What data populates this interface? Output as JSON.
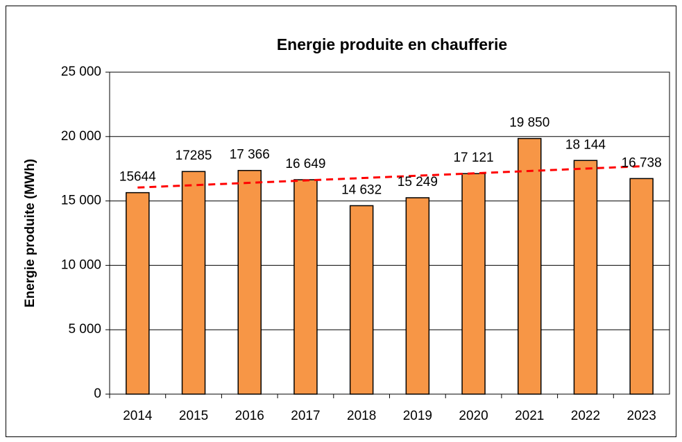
{
  "chart_data": {
    "type": "bar",
    "title": "Energie produite en chaufferie",
    "y_label": "Energie produite (MWh)",
    "categories": [
      "2014",
      "2015",
      "2016",
      "2017",
      "2018",
      "2019",
      "2020",
      "2021",
      "2022",
      "2023"
    ],
    "values": [
      15644,
      17285,
      17366,
      16649,
      14632,
      15249,
      17121,
      19850,
      18144,
      16738
    ],
    "value_labels": [
      "15644",
      "17285",
      "17 366",
      "16 649",
      "14 632",
      "15 249",
      "17 121",
      "19 850",
      "18 144",
      "16 738"
    ],
    "color": "#f79646",
    "trendline": {
      "color": "#ff0000",
      "dashed": true,
      "values": [
        16041,
        17694
      ]
    },
    "ylim": [
      0,
      25000
    ],
    "yticks": [
      0,
      {
        "value": 5000,
        "label": "5 000"
      },
      {
        "value": 10000,
        "label": "10 000"
      },
      {
        "value": 15000,
        "label": "15 000"
      },
      {
        "value": 20000,
        "label": "20 000"
      },
      {
        "value": 25000,
        "label": "25 000"
      }
    ],
    "grid": true
  }
}
